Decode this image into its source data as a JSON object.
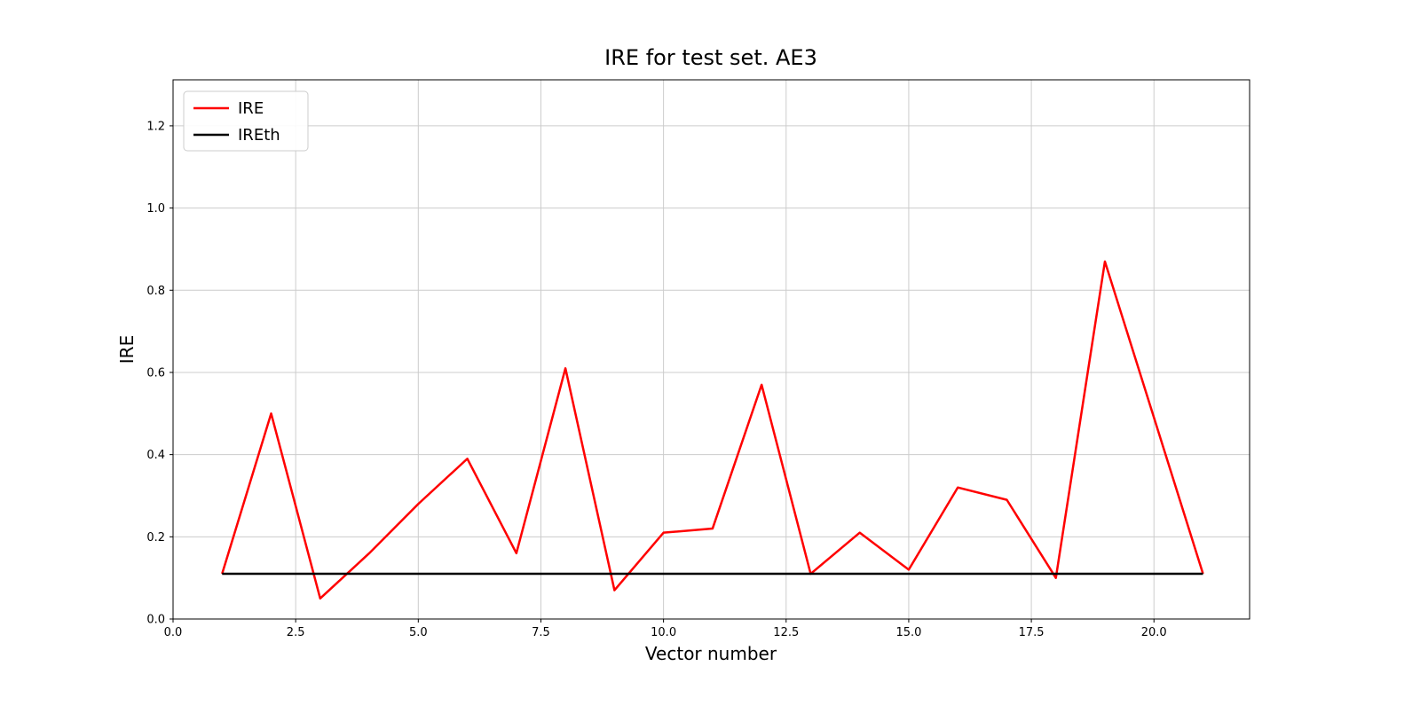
{
  "figure": {
    "title": "IRE for test set. AE3",
    "xlabel": "Vector number",
    "ylabel": "IRE"
  },
  "legend": {
    "position": "upper left",
    "items": [
      {
        "label": "IRE",
        "color": "#ff0000"
      },
      {
        "label": "IREth",
        "color": "#000000"
      }
    ]
  },
  "chart_data": {
    "type": "line",
    "title": "IRE for test set. AE3",
    "xlabel": "Vector number",
    "ylabel": "IRE",
    "xlim": [
      0.0,
      21.95
    ],
    "ylim": [
      0.0,
      1.312
    ],
    "x_ticks": [
      0.0,
      2.5,
      5.0,
      7.5,
      10.0,
      12.5,
      15.0,
      17.5,
      20.0
    ],
    "y_ticks": [
      0.0,
      0.2,
      0.4,
      0.6,
      0.8,
      1.0,
      1.2
    ],
    "grid": true,
    "legend_position": "upper left",
    "x": [
      1,
      2,
      3,
      4,
      5,
      6,
      7,
      8,
      9,
      10,
      11,
      12,
      13,
      14,
      15,
      16,
      17,
      18,
      19,
      20,
      21
    ],
    "series": [
      {
        "name": "IRE",
        "color": "#ff0000",
        "values": [
          0.11,
          0.5,
          0.05,
          0.16,
          0.28,
          0.39,
          0.16,
          0.61,
          0.07,
          0.21,
          0.22,
          0.57,
          0.11,
          0.21,
          0.12,
          0.32,
          0.29,
          0.1,
          0.87,
          0.49,
          0.11
        ]
      },
      {
        "name": "IREth",
        "color": "#000000",
        "values": [
          0.11,
          0.11,
          0.11,
          0.11,
          0.11,
          0.11,
          0.11,
          0.11,
          0.11,
          0.11,
          0.11,
          0.11,
          0.11,
          0.11,
          0.11,
          0.11,
          0.11,
          0.11,
          0.11,
          0.11,
          0.11
        ]
      }
    ]
  }
}
